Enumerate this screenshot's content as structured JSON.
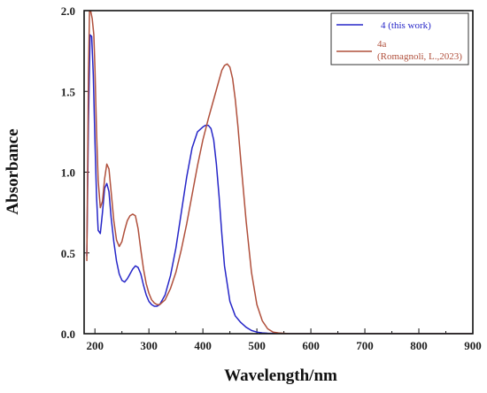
{
  "chart_data": {
    "type": "line",
    "xlabel": "Wavelength/nm",
    "ylabel": "Absorbance",
    "xlim": [
      180,
      900
    ],
    "ylim": [
      0,
      2.0
    ],
    "x_ticks": [
      "200",
      "300",
      "400",
      "500",
      "600",
      "700",
      "800",
      "900"
    ],
    "y_ticks": [
      "0.0",
      "0.5",
      "1.0",
      "1.5",
      "2.0"
    ],
    "legend_position": "top-right",
    "series": [
      {
        "name": "4 (this work)",
        "legend_line1": "4   (this work)",
        "legend_line2": "",
        "color": "#2626c8",
        "x": [
          185,
          188,
          191,
          194,
          197,
          200,
          203,
          206,
          210,
          214,
          218,
          222,
          226,
          230,
          235,
          240,
          245,
          250,
          255,
          260,
          265,
          270,
          275,
          280,
          285,
          290,
          295,
          300,
          305,
          310,
          315,
          320,
          330,
          340,
          350,
          360,
          370,
          380,
          390,
          400,
          405,
          410,
          415,
          420,
          425,
          430,
          435,
          440,
          450,
          460,
          470,
          480,
          490,
          500,
          510,
          520,
          540,
          560,
          600,
          700,
          800,
          900
        ],
        "y": [
          0.48,
          1.3,
          1.85,
          1.84,
          1.6,
          1.2,
          0.85,
          0.64,
          0.62,
          0.75,
          0.9,
          0.93,
          0.88,
          0.72,
          0.57,
          0.45,
          0.37,
          0.33,
          0.32,
          0.34,
          0.37,
          0.4,
          0.42,
          0.41,
          0.37,
          0.3,
          0.24,
          0.2,
          0.18,
          0.17,
          0.17,
          0.18,
          0.24,
          0.36,
          0.53,
          0.75,
          0.97,
          1.15,
          1.25,
          1.28,
          1.29,
          1.29,
          1.27,
          1.2,
          1.05,
          0.85,
          0.62,
          0.42,
          0.2,
          0.11,
          0.07,
          0.04,
          0.02,
          0.01,
          0.005,
          0.003,
          0.002,
          0.0,
          0.0,
          0.0,
          0.0,
          0.0
        ]
      },
      {
        "name": "4a (Romagnoli, L.,2023)",
        "legend_line1": "4a",
        "legend_line2": "(Romagnoli, L.,2023)",
        "color": "#b0503c",
        "x": [
          185,
          188,
          190,
          192,
          195,
          198,
          200,
          203,
          206,
          210,
          214,
          218,
          222,
          226,
          230,
          235,
          240,
          245,
          250,
          255,
          260,
          265,
          270,
          275,
          280,
          285,
          290,
          295,
          300,
          305,
          310,
          315,
          320,
          330,
          340,
          350,
          360,
          370,
          380,
          390,
          400,
          410,
          420,
          430,
          435,
          440,
          445,
          450,
          455,
          460,
          465,
          470,
          480,
          490,
          500,
          510,
          520,
          530,
          540,
          560,
          600,
          700,
          800,
          900
        ],
        "y": [
          0.45,
          1.6,
          2.0,
          2.0,
          1.95,
          1.85,
          1.65,
          1.25,
          0.95,
          0.78,
          0.82,
          0.96,
          1.05,
          1.02,
          0.88,
          0.7,
          0.58,
          0.54,
          0.57,
          0.64,
          0.7,
          0.73,
          0.74,
          0.73,
          0.65,
          0.52,
          0.4,
          0.31,
          0.25,
          0.21,
          0.19,
          0.18,
          0.18,
          0.21,
          0.28,
          0.38,
          0.52,
          0.68,
          0.86,
          1.04,
          1.2,
          1.33,
          1.45,
          1.57,
          1.63,
          1.66,
          1.67,
          1.65,
          1.58,
          1.45,
          1.28,
          1.08,
          0.7,
          0.38,
          0.18,
          0.08,
          0.03,
          0.01,
          0.005,
          0.0,
          0.0,
          0.0,
          0.0,
          0.0
        ]
      }
    ]
  }
}
